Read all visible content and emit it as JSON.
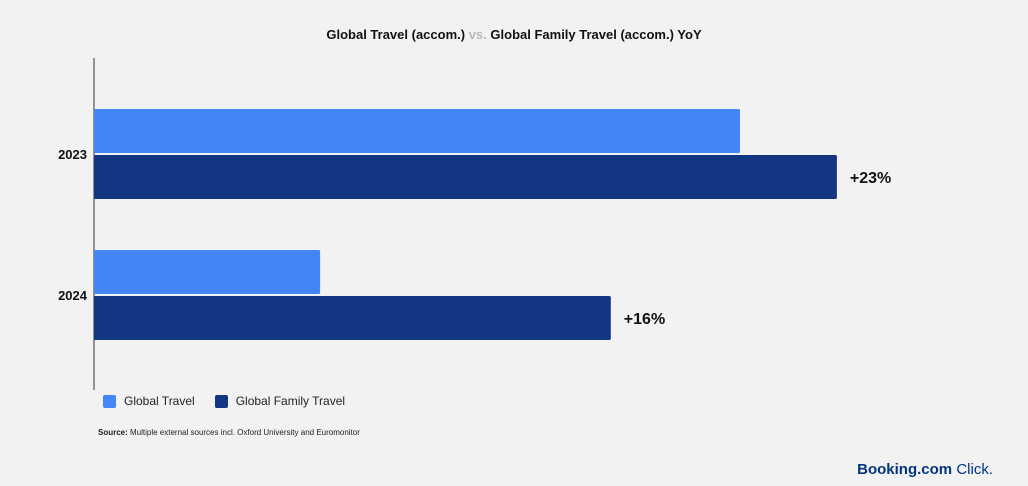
{
  "title": {
    "part1": "Global Travel (accom.)",
    "vs": "vs.",
    "part2": "Global Family Travel (accom.) YoY"
  },
  "colors": {
    "global_travel": "#4287f5",
    "global_family_travel": "#133682"
  },
  "chart_data": {
    "type": "bar",
    "orientation": "horizontal",
    "categories": [
      "2023",
      "2024"
    ],
    "series": [
      {
        "name": "Global Travel",
        "values": [
          20,
          7
        ]
      },
      {
        "name": "Global Family Travel",
        "values": [
          23,
          16
        ]
      }
    ],
    "data_labels": [
      "+23%",
      "+16%"
    ],
    "xlim": [
      0,
      30
    ],
    "grid": false,
    "legend_position": "bottom-left"
  },
  "legend": {
    "items": [
      "Global Travel",
      "Global Family Travel"
    ]
  },
  "source": {
    "label": "Source:",
    "text": " Multiple external sources incl. Oxford University and Euromonitor"
  },
  "brand": {
    "name": "Booking.com",
    "suffix": " Click."
  }
}
